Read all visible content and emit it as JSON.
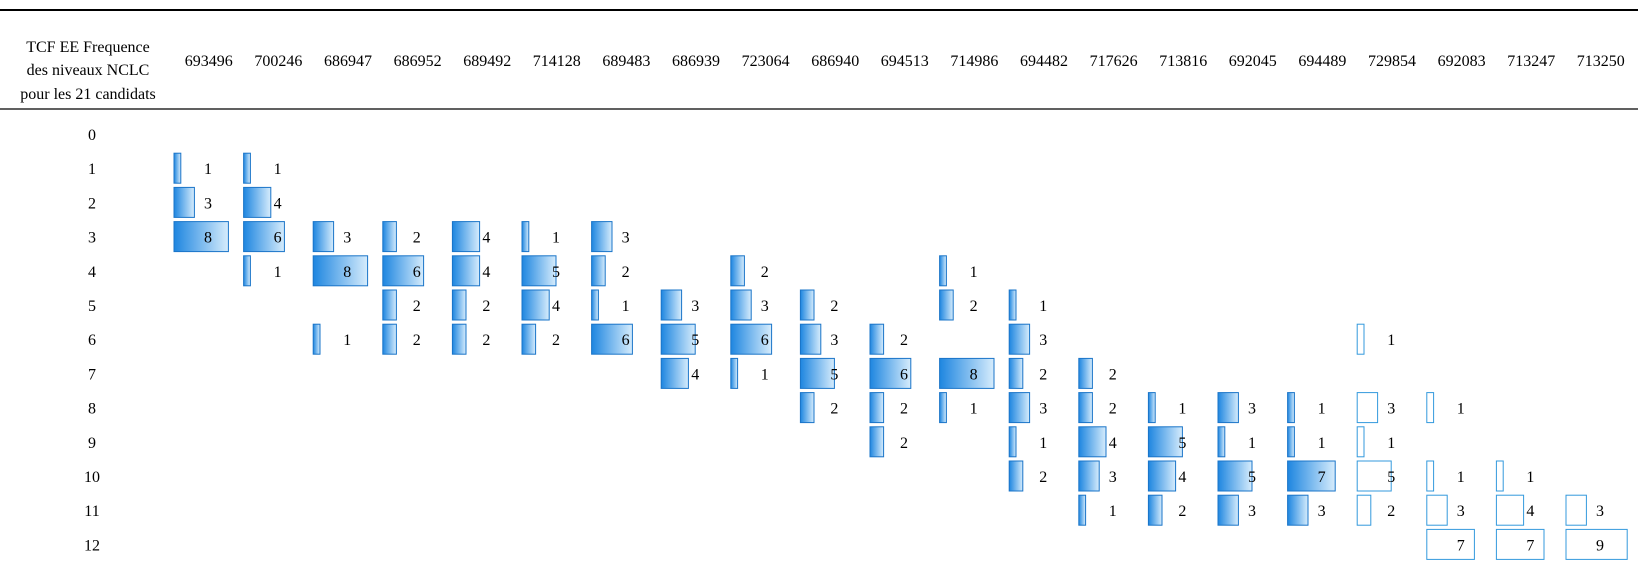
{
  "chart_data": {
    "type": "table",
    "title_lines": [
      "TCF EE Frequence",
      "des niveaux NCLC",
      "pour les 21 candidats"
    ],
    "columns": [
      "693496",
      "700246",
      "686947",
      "686952",
      "689492",
      "714128",
      "689483",
      "686939",
      "723064",
      "686940",
      "694513",
      "714986",
      "694482",
      "717626",
      "713816",
      "692045",
      "694489",
      "729854",
      "692083",
      "713247",
      "713250"
    ],
    "levels": [
      0,
      1,
      2,
      3,
      4,
      5,
      6,
      7,
      8,
      9,
      10,
      11,
      12
    ],
    "counts": [
      [
        0,
        1,
        3,
        8,
        0,
        0,
        0,
        0,
        0,
        0,
        0,
        0,
        0
      ],
      [
        0,
        1,
        4,
        6,
        1,
        0,
        0,
        0,
        0,
        0,
        0,
        0,
        0
      ],
      [
        0,
        0,
        0,
        3,
        8,
        0,
        1,
        0,
        0,
        0,
        0,
        0,
        0
      ],
      [
        0,
        0,
        0,
        2,
        6,
        2,
        2,
        0,
        0,
        0,
        0,
        0,
        0
      ],
      [
        0,
        0,
        0,
        4,
        4,
        2,
        2,
        0,
        0,
        0,
        0,
        0,
        0
      ],
      [
        0,
        0,
        0,
        1,
        5,
        4,
        2,
        0,
        0,
        0,
        0,
        0,
        0
      ],
      [
        0,
        0,
        0,
        3,
        2,
        1,
        6,
        0,
        0,
        0,
        0,
        0,
        0
      ],
      [
        0,
        0,
        0,
        0,
        0,
        3,
        5,
        4,
        0,
        0,
        0,
        0,
        0
      ],
      [
        0,
        0,
        0,
        0,
        2,
        3,
        6,
        1,
        0,
        0,
        0,
        0,
        0
      ],
      [
        0,
        0,
        0,
        0,
        0,
        2,
        3,
        5,
        2,
        0,
        0,
        0,
        0
      ],
      [
        0,
        0,
        0,
        0,
        0,
        0,
        2,
        6,
        2,
        2,
        0,
        0,
        0
      ],
      [
        0,
        0,
        0,
        0,
        1,
        2,
        0,
        8,
        1,
        0,
        0,
        0,
        0
      ],
      [
        0,
        0,
        0,
        0,
        0,
        1,
        3,
        2,
        3,
        1,
        2,
        0,
        0
      ],
      [
        0,
        0,
        0,
        0,
        0,
        0,
        0,
        2,
        2,
        4,
        3,
        1,
        0
      ],
      [
        0,
        0,
        0,
        0,
        0,
        0,
        0,
        0,
        1,
        5,
        4,
        2,
        0
      ],
      [
        0,
        0,
        0,
        0,
        0,
        0,
        0,
        0,
        3,
        1,
        5,
        3,
        0
      ],
      [
        0,
        0,
        0,
        0,
        0,
        0,
        0,
        0,
        1,
        1,
        7,
        3,
        0
      ],
      [
        0,
        0,
        0,
        0,
        0,
        0,
        1,
        0,
        3,
        1,
        5,
        2,
        0
      ],
      [
        0,
        0,
        0,
        0,
        0,
        0,
        0,
        0,
        1,
        0,
        1,
        3,
        7
      ],
      [
        0,
        0,
        0,
        0,
        0,
        0,
        0,
        0,
        0,
        0,
        1,
        4,
        7
      ],
      [
        0,
        0,
        0,
        0,
        0,
        0,
        0,
        0,
        0,
        0,
        0,
        3,
        9
      ]
    ],
    "colors": {
      "filled_light": "#d6ecfc",
      "filled_dark": "#1e86e0",
      "filled_border": "#1a74c8",
      "outline_border": "#3399dd",
      "rule": "#000000"
    }
  }
}
